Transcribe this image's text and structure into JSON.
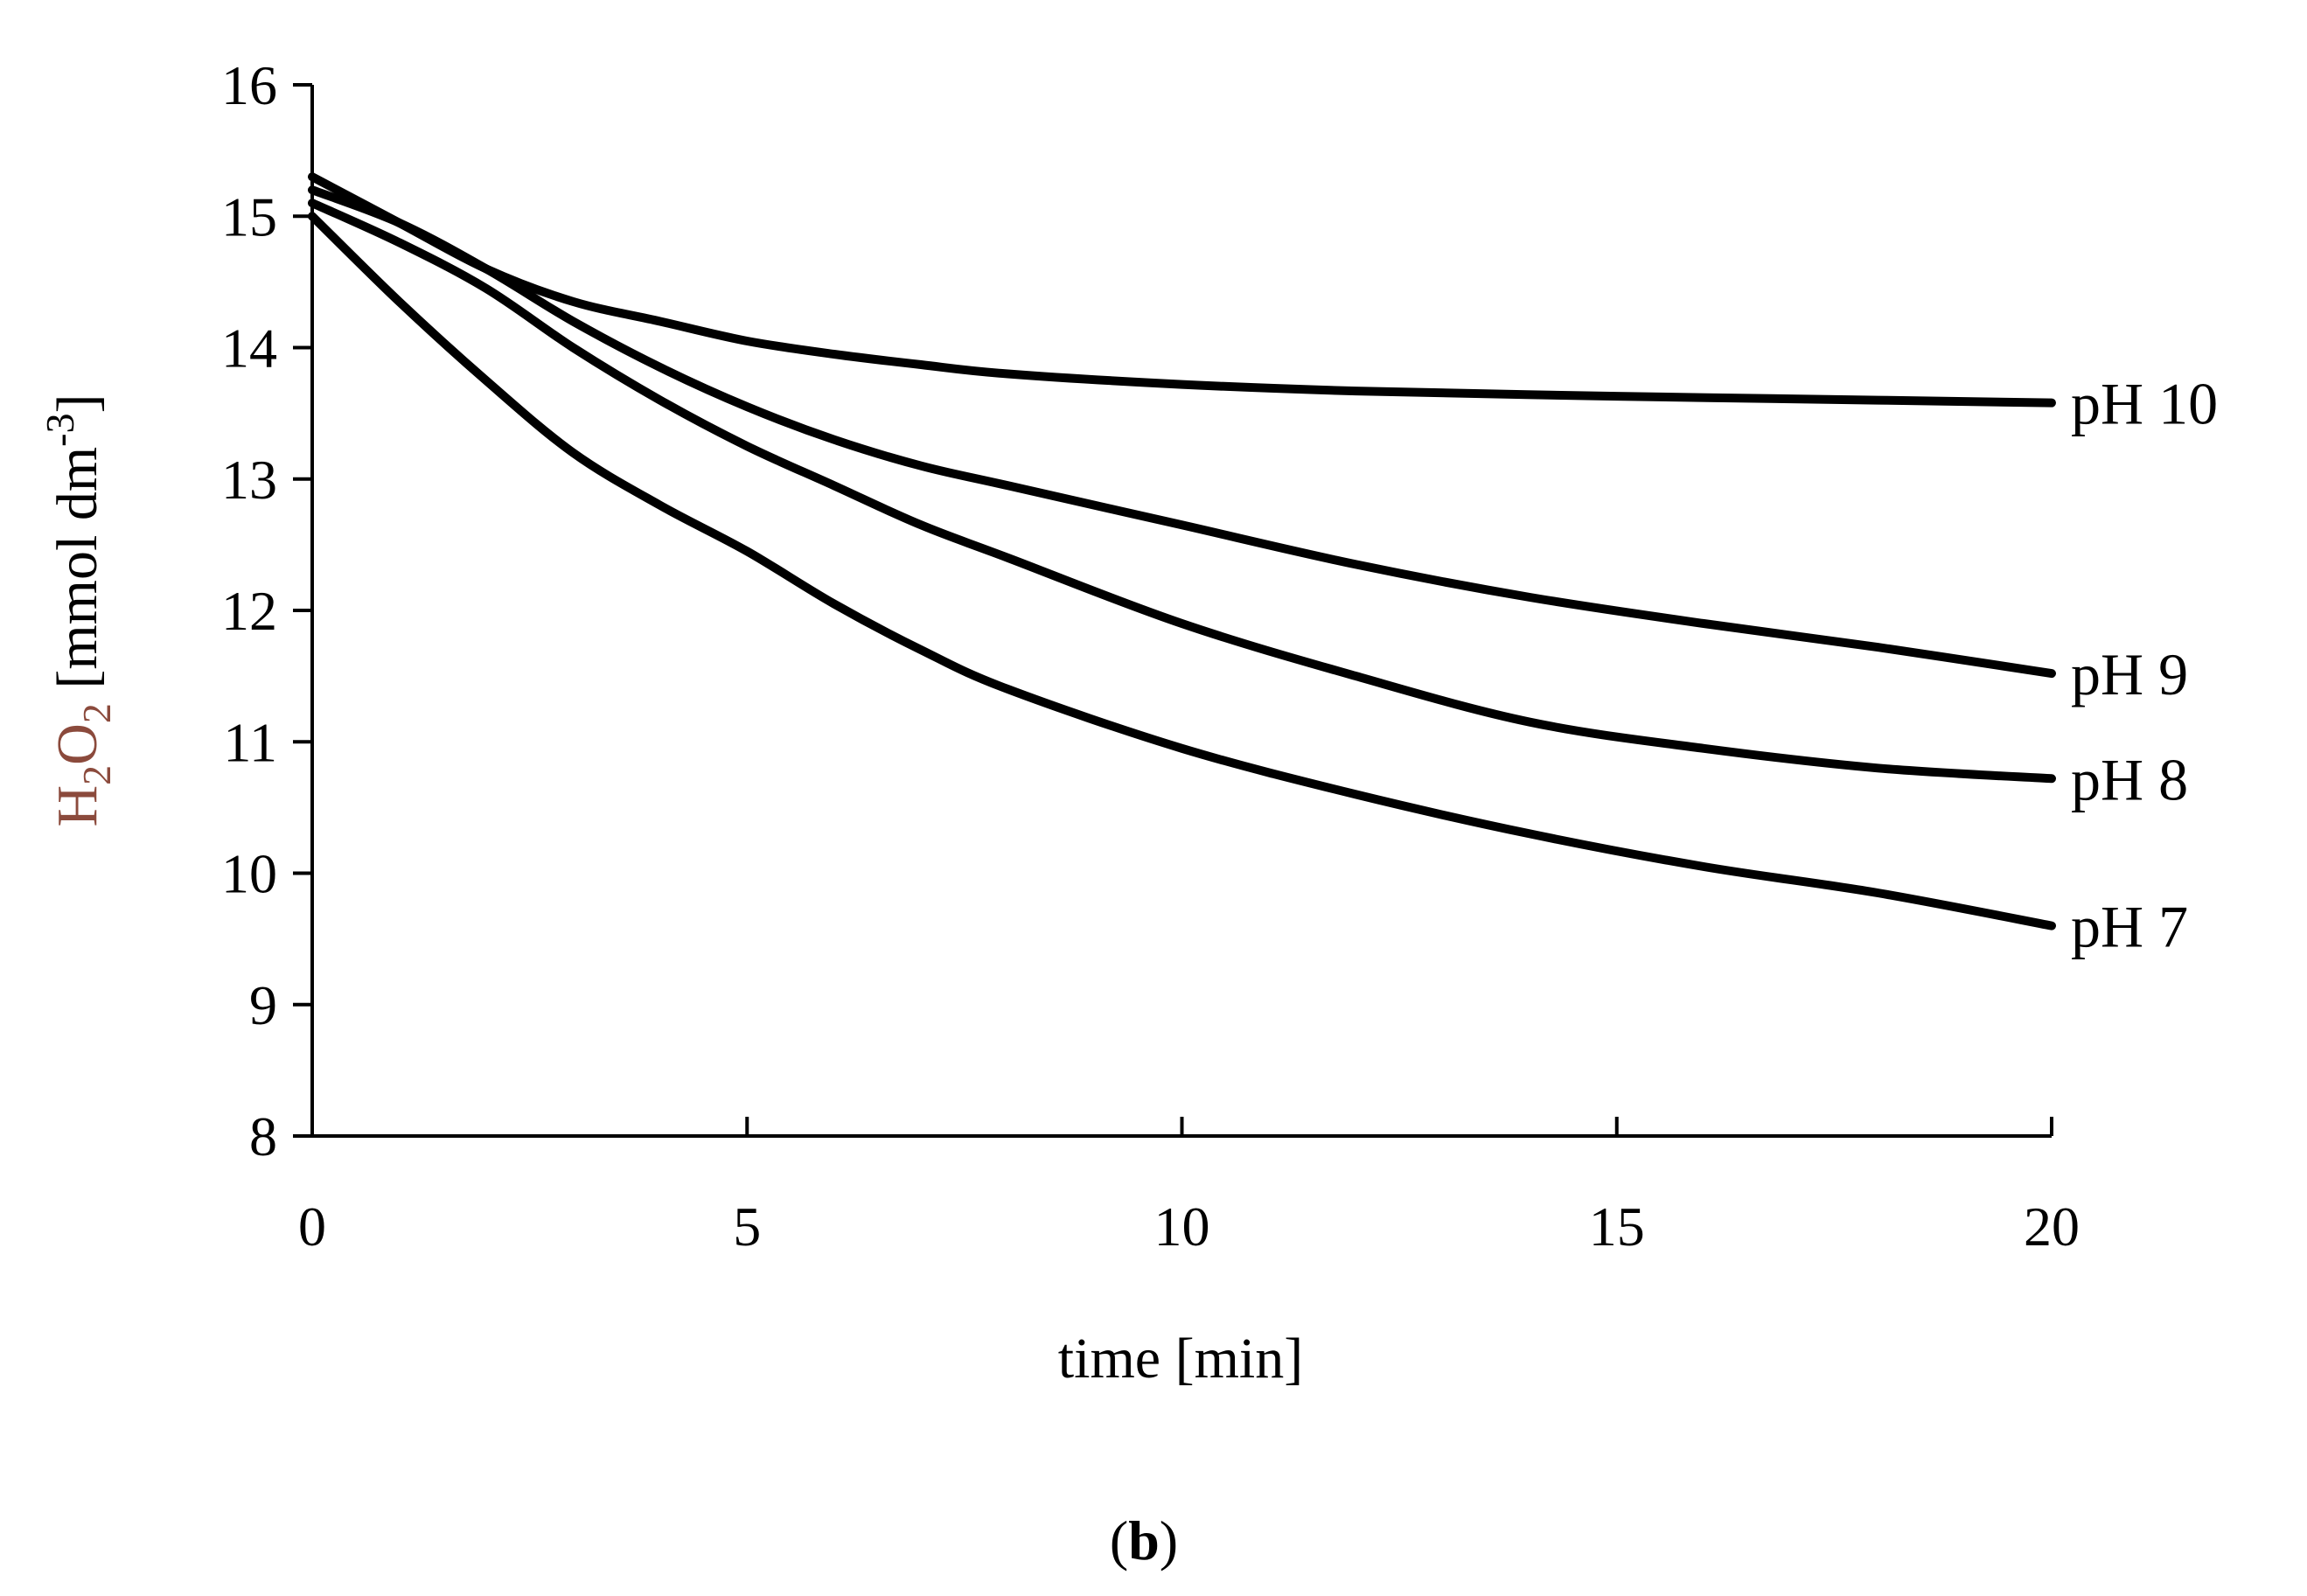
{
  "panel_label": {
    "open": "(",
    "letter": "b",
    "close": ")"
  },
  "chart_data": {
    "type": "line",
    "title": "",
    "xlabel": "time  [min]",
    "ylabel": {
      "pre": "H",
      "sub1": "2",
      "mid": "O",
      "sub2": "2",
      "unit_open": " [mmol  dm",
      "sup": "-3",
      "unit_close": "]"
    },
    "xlim": [
      0,
      20
    ],
    "ylim": [
      8,
      16
    ],
    "xticks": [
      "0",
      "5",
      "10",
      "15",
      "20"
    ],
    "yticks": [
      "8",
      "9",
      "10",
      "11",
      "12",
      "13",
      "14",
      "15",
      "16"
    ],
    "grid": false,
    "legend": "inline labels at line ends",
    "colors": {
      "line": "#000000",
      "axis": "#000000",
      "ylabel": "#8b4a3c"
    },
    "series": [
      {
        "name": "pH 10",
        "x": [
          0,
          1,
          2,
          3,
          4,
          5,
          6,
          7,
          8,
          10,
          12,
          15,
          18,
          20
        ],
        "values": [
          15.3,
          14.95,
          14.6,
          14.35,
          14.2,
          14.05,
          13.95,
          13.87,
          13.8,
          13.72,
          13.67,
          13.63,
          13.6,
          13.58
        ]
      },
      {
        "name": "pH 9",
        "x": [
          0,
          1,
          2,
          3,
          4,
          5,
          6,
          7,
          8,
          10,
          12,
          14,
          16,
          18,
          20
        ],
        "values": [
          15.2,
          14.95,
          14.6,
          14.2,
          13.85,
          13.55,
          13.3,
          13.1,
          12.95,
          12.65,
          12.35,
          12.1,
          11.9,
          11.72,
          11.52
        ]
      },
      {
        "name": "pH 8",
        "x": [
          0,
          1,
          2,
          3,
          4,
          5,
          6,
          7,
          8,
          10,
          12,
          14,
          16,
          18,
          20
        ],
        "values": [
          15.1,
          14.8,
          14.45,
          14.0,
          13.6,
          13.25,
          12.95,
          12.65,
          12.4,
          11.9,
          11.5,
          11.15,
          10.95,
          10.8,
          10.72
        ]
      },
      {
        "name": "pH 7",
        "x": [
          0,
          1,
          2,
          3,
          4,
          5,
          6,
          7,
          8,
          10,
          12,
          14,
          16,
          18,
          20
        ],
        "values": [
          15.0,
          14.35,
          13.75,
          13.2,
          12.8,
          12.45,
          12.05,
          11.7,
          11.4,
          10.95,
          10.6,
          10.3,
          10.05,
          9.85,
          9.6
        ]
      }
    ]
  }
}
